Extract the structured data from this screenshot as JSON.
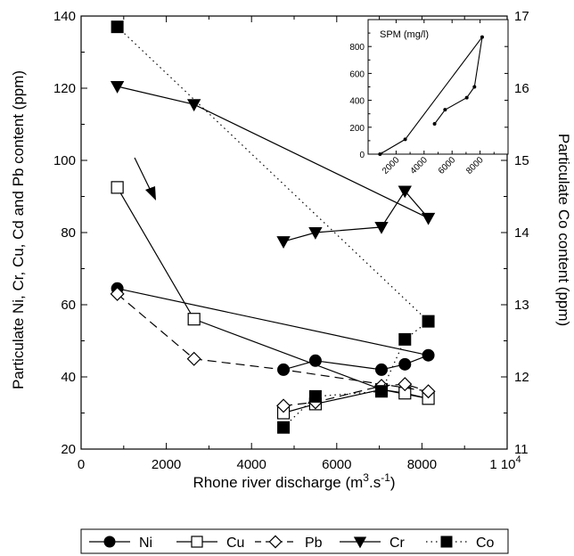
{
  "chart_data": [
    {
      "type": "line",
      "xlabel_main": "Rhone river discharge (m",
      "xlabel_sup": "3",
      "xlabel_mid": ".s",
      "xlabel_sup2": "-1",
      "xlabel_end": ")",
      "ylabel": "Particulate Ni, Cr, Cu, Cd and Pb content (ppm)",
      "y2label": "Particulate Co content (ppm)",
      "xlim": [
        0,
        10000
      ],
      "ylim": [
        20,
        140
      ],
      "y2lim": [
        11,
        17
      ],
      "xticks": [
        "0",
        "2000",
        "4000",
        "6000",
        "8000"
      ],
      "xtick_last": "1 10",
      "xtick_last_sup": "4",
      "yticks": [
        "20",
        "40",
        "60",
        "80",
        "100",
        "120",
        "140"
      ],
      "y2ticks": [
        "11",
        "12",
        "13",
        "14",
        "15",
        "16",
        "17"
      ],
      "grid": false,
      "legend_position": "bottom",
      "series": [
        {
          "name": "Ni",
          "axis": "left",
          "marker": "circle-filled",
          "line": "solid",
          "points": [
            [
              850,
              64.5
            ],
            [
              4750,
              42
            ],
            [
              5500,
              44.5
            ],
            [
              7050,
              42
            ],
            [
              7600,
              43.5
            ],
            [
              8150,
              46
            ],
            [
              850,
              64.5
            ],
            [
              8150,
              46
            ]
          ],
          "path": [
            [
              850,
              64.5
            ],
            [
              8150,
              46
            ]
          ],
          "path2": [
            [
              4750,
              42
            ],
            [
              5500,
              44.5
            ],
            [
              7050,
              42
            ],
            [
              7600,
              43.5
            ],
            [
              8150,
              46
            ]
          ],
          "markers": [
            [
              850,
              64.5
            ],
            [
              4750,
              42
            ],
            [
              5500,
              44.5
            ],
            [
              7050,
              42
            ],
            [
              7600,
              43.5
            ],
            [
              8150,
              46
            ]
          ]
        },
        {
          "name": "Cu",
          "axis": "left",
          "marker": "square-open",
          "line": "solid",
          "path": [
            [
              850,
              92.5
            ],
            [
              2650,
              56
            ],
            [
              7050,
              36.5
            ],
            [
              8150,
              34
            ]
          ],
          "path2": [
            [
              4750,
              30
            ],
            [
              5500,
              32.5
            ],
            [
              7050,
              36.5
            ],
            [
              7600,
              35.5
            ],
            [
              8150,
              34
            ]
          ],
          "markers": [
            [
              850,
              92.5
            ],
            [
              2650,
              56
            ],
            [
              4750,
              30
            ],
            [
              5500,
              32.5
            ],
            [
              7050,
              36.5
            ],
            [
              7600,
              35.5
            ],
            [
              8150,
              34
            ]
          ]
        },
        {
          "name": "Pb",
          "axis": "left",
          "marker": "diamond-open",
          "line": "dashed",
          "path": [
            [
              850,
              63
            ],
            [
              2650,
              45
            ],
            [
              4750,
              42
            ],
            [
              7050,
              38
            ],
            [
              8150,
              36
            ]
          ],
          "path2": [
            [
              4750,
              32
            ],
            [
              5500,
              33
            ],
            [
              7050,
              37.5
            ],
            [
              7600,
              38
            ],
            [
              8150,
              36
            ]
          ],
          "markers": [
            [
              850,
              63
            ],
            [
              2650,
              45
            ],
            [
              4750,
              32
            ],
            [
              5500,
              33
            ],
            [
              7050,
              37.5
            ],
            [
              7600,
              38
            ],
            [
              8150,
              36
            ]
          ]
        },
        {
          "name": "Cr",
          "axis": "left",
          "marker": "triangle-down-filled",
          "line": "solid",
          "path": [
            [
              850,
              120.5
            ],
            [
              2650,
              115.5
            ],
            [
              8150,
              84
            ]
          ],
          "path2": [
            [
              4750,
              77.5
            ],
            [
              5500,
              80
            ],
            [
              7050,
              81.5
            ],
            [
              7600,
              91.5
            ],
            [
              8150,
              84
            ]
          ],
          "markers": [
            [
              850,
              120.5
            ],
            [
              2650,
              115.5
            ],
            [
              4750,
              77.5
            ],
            [
              5500,
              80
            ],
            [
              7050,
              81.5
            ],
            [
              7600,
              91.5
            ],
            [
              8150,
              84
            ]
          ]
        },
        {
          "name": "Co",
          "axis": "right",
          "marker": "square-filled",
          "line": "dotted",
          "path": [
            [
              850,
              16.85
            ],
            [
              8150,
              12.77
            ]
          ],
          "path2": [
            [
              4750,
              11.3
            ],
            [
              5500,
              11.73
            ],
            [
              7050,
              11.8
            ],
            [
              7600,
              12.52
            ],
            [
              8150,
              12.77
            ]
          ],
          "markers": [
            [
              850,
              16.85
            ],
            [
              4750,
              11.3
            ],
            [
              5500,
              11.73
            ],
            [
              7050,
              11.8
            ],
            [
              7600,
              12.52
            ],
            [
              8150,
              12.77
            ]
          ]
        }
      ],
      "arrow_annotation": "flow direction arrow"
    },
    {
      "type": "line",
      "label": "SPM (mg/l)",
      "xlim": [
        0,
        10000
      ],
      "ylim": [
        0,
        1000
      ],
      "xticks": [
        "2000",
        "4000",
        "6000",
        "8000"
      ],
      "yticks": [
        "0",
        "200",
        "400",
        "600",
        "800"
      ],
      "path": [
        [
          850,
          0
        ],
        [
          2650,
          110
        ],
        [
          8150,
          870
        ],
        [
          7600,
          500
        ],
        [
          7050,
          420
        ],
        [
          5500,
          330
        ],
        [
          4750,
          225
        ]
      ],
      "markers": [
        [
          850,
          0
        ],
        [
          2650,
          110
        ],
        [
          4750,
          225
        ],
        [
          5500,
          330
        ],
        [
          7050,
          420
        ],
        [
          7600,
          500
        ],
        [
          8150,
          870
        ]
      ]
    }
  ],
  "legend": {
    "items": [
      {
        "label": "Ni",
        "marker": "circle-filled",
        "line": "solid"
      },
      {
        "label": "Cu",
        "marker": "square-open",
        "line": "solid"
      },
      {
        "label": "Pb",
        "marker": "diamond-open",
        "line": "dashed"
      },
      {
        "label": "Cr",
        "marker": "triangle-down-filled",
        "line": "solid"
      },
      {
        "label": "Co",
        "marker": "square-filled",
        "line": "dotted"
      }
    ]
  }
}
